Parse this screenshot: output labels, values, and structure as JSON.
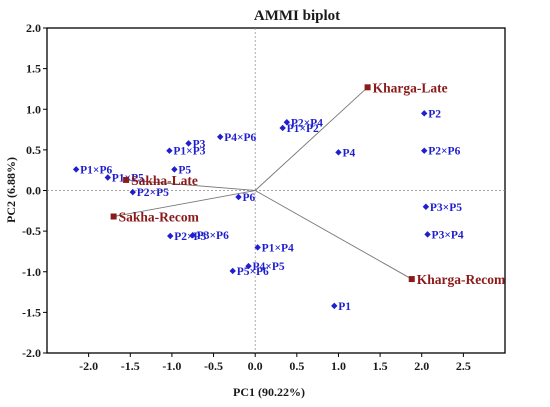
{
  "chart_data": {
    "type": "scatter",
    "title": "AMMI biplot",
    "xlabel": "PC1 (90.22%)",
    "ylabel": "PC2 (6.88%)",
    "xlim": [
      -2.5,
      3.0
    ],
    "ylim": [
      -2.0,
      2.0
    ],
    "x_ticks": [
      -2.0,
      -1.5,
      -1.0,
      -0.5,
      0.0,
      0.5,
      1.0,
      1.5,
      2.0,
      2.5
    ],
    "x_tick_labels": [
      "-2.0",
      "-1.5",
      "-1.0",
      "-0.5",
      "0.0",
      "0.5",
      "1.0",
      "1.5",
      "2.0",
      "2.5"
    ],
    "y_ticks": [
      -2.0,
      -1.5,
      -1.0,
      -0.5,
      0.0,
      0.5,
      1.0,
      1.5,
      2.0
    ],
    "y_tick_labels": [
      "-2.0",
      "-1.5",
      "-1.0",
      "-0.5",
      "0.0",
      "0.5",
      "1.0",
      "1.5",
      "2.0"
    ],
    "grid": false,
    "reference_lines": [
      0,
      0
    ],
    "colors": {
      "genotype": "#1f1fd0",
      "environment": "#8b1a1a",
      "axes": "#000000"
    },
    "genotypes": [
      {
        "label": "P1",
        "x": 0.95,
        "y": -1.42
      },
      {
        "label": "P2",
        "x": 2.03,
        "y": 0.95
      },
      {
        "label": "P3",
        "x": -0.8,
        "y": 0.58
      },
      {
        "label": "P4",
        "x": 1.0,
        "y": 0.47
      },
      {
        "label": "P5",
        "x": -0.97,
        "y": 0.26
      },
      {
        "label": "P6",
        "x": -0.2,
        "y": -0.08
      },
      {
        "label": "P1×P2",
        "x": 0.33,
        "y": 0.77
      },
      {
        "label": "P1×P3",
        "x": -1.03,
        "y": 0.49
      },
      {
        "label": "P1×P4",
        "x": 0.03,
        "y": -0.7
      },
      {
        "label": "P1×P5",
        "x": -1.77,
        "y": 0.16
      },
      {
        "label": "P1×P6",
        "x": -2.15,
        "y": 0.26
      },
      {
        "label": "P2×P3",
        "x": -1.02,
        "y": -0.56
      },
      {
        "label": "P2×P4",
        "x": 0.38,
        "y": 0.84
      },
      {
        "label": "P2×P5",
        "x": -1.47,
        "y": -0.02
      },
      {
        "label": "P2×P6",
        "x": 2.03,
        "y": 0.49
      },
      {
        "label": "P3×P4",
        "x": 2.07,
        "y": -0.54
      },
      {
        "label": "P3×P5",
        "x": 2.05,
        "y": -0.2
      },
      {
        "label": "P3×P6",
        "x": -0.75,
        "y": -0.55
      },
      {
        "label": "P4×P5",
        "x": -0.08,
        "y": -0.93
      },
      {
        "label": "P4×P6",
        "x": -0.42,
        "y": 0.66
      },
      {
        "label": "P5×P6",
        "x": -0.27,
        "y": -0.99
      }
    ],
    "environments": [
      {
        "label": "Kharga-Late",
        "x": 1.35,
        "y": 1.27
      },
      {
        "label": "Kharga-Recom",
        "x": 1.88,
        "y": -1.09
      },
      {
        "label": "Sakha-Late",
        "x": -1.55,
        "y": 0.13
      },
      {
        "label": "Sakha-Recom",
        "x": -1.7,
        "y": -0.32
      }
    ]
  }
}
